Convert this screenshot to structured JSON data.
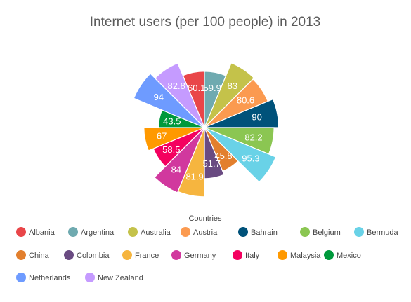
{
  "chart_data": {
    "type": "pie",
    "title": "Internet users (per 100 people) in 2013",
    "legend_title": "Countries",
    "legend_position": "bottom",
    "slices": [
      {
        "name": "Albania",
        "value": 60.1,
        "color": "#e94649"
      },
      {
        "name": "Argentina",
        "value": 59.9,
        "color": "#6faab0"
      },
      {
        "name": "Australia",
        "value": 83,
        "color": "#c4c24a"
      },
      {
        "name": "Austria",
        "value": 80.6,
        "color": "#fb9a50"
      },
      {
        "name": "Bahrain",
        "value": 90,
        "color": "#00527a"
      },
      {
        "name": "Belgium",
        "value": 82.2,
        "color": "#8bc652"
      },
      {
        "name": "Bermuda",
        "value": 95.3,
        "color": "#69d2e7"
      },
      {
        "name": "China",
        "value": 45.8,
        "color": "#e27f2d"
      },
      {
        "name": "Colombia",
        "value": 51.7,
        "color": "#6a4b82"
      },
      {
        "name": "France",
        "value": 81.9,
        "color": "#f6b53f"
      },
      {
        "name": "Germany",
        "value": 84,
        "color": "#d1389e"
      },
      {
        "name": "Italy",
        "value": 58.5,
        "color": "#f4005f"
      },
      {
        "name": "Malaysia",
        "value": 67,
        "color": "#ff9900"
      },
      {
        "name": "Mexico",
        "value": 43.5,
        "color": "#00993c"
      },
      {
        "name": "Netherlands",
        "value": 94,
        "color": "#6e9bff"
      },
      {
        "name": "New Zealand",
        "value": 82.8,
        "color": "#c59bff"
      }
    ]
  }
}
